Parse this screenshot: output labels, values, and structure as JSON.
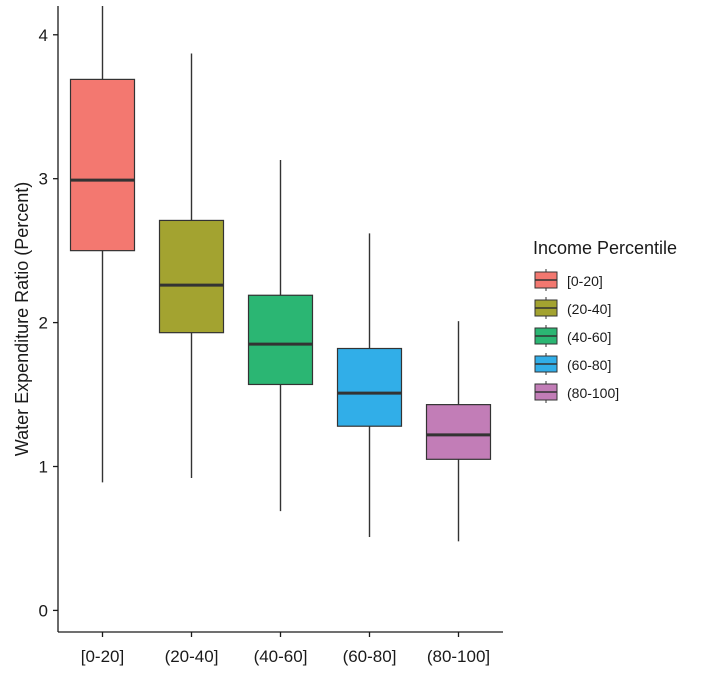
{
  "chart_data": {
    "type": "boxplot",
    "title": "",
    "xlabel": "",
    "ylabel": "Water Expenditure Ratio (Percent)",
    "ylim": [
      -0.15,
      4.2
    ],
    "yticks": [
      0,
      1,
      2,
      3,
      4
    ],
    "ytick_labels": [
      "0",
      "1",
      "2",
      "3",
      "4"
    ],
    "grid": false,
    "legend": {
      "title": "Income Percentile",
      "placement": "right"
    },
    "categories": [
      "[0-20]",
      "(20-40]",
      "(40-60]",
      "(60-80]",
      "(80-100]"
    ],
    "boxes": [
      {
        "label": "[0-20]",
        "whisker_low": 0.89,
        "q1": 2.5,
        "median": 2.99,
        "q3": 3.69,
        "whisker_high": 4.2,
        "color": "#F37870"
      },
      {
        "label": "(20-40]",
        "whisker_low": 0.92,
        "q1": 1.93,
        "median": 2.26,
        "q3": 2.71,
        "whisker_high": 3.87,
        "color": "#A3A330"
      },
      {
        "label": "(40-60]",
        "whisker_low": 0.69,
        "q1": 1.57,
        "median": 1.85,
        "q3": 2.19,
        "whisker_high": 3.13,
        "color": "#2BB673"
      },
      {
        "label": "(60-80]",
        "whisker_low": 0.51,
        "q1": 1.28,
        "median": 1.51,
        "q3": 1.82,
        "whisker_high": 2.62,
        "color": "#31AEE8"
      },
      {
        "label": "(80-100]",
        "whisker_low": 0.48,
        "q1": 1.05,
        "median": 1.22,
        "q3": 1.43,
        "whisker_high": 2.01,
        "color": "#C27DB7"
      }
    ]
  }
}
